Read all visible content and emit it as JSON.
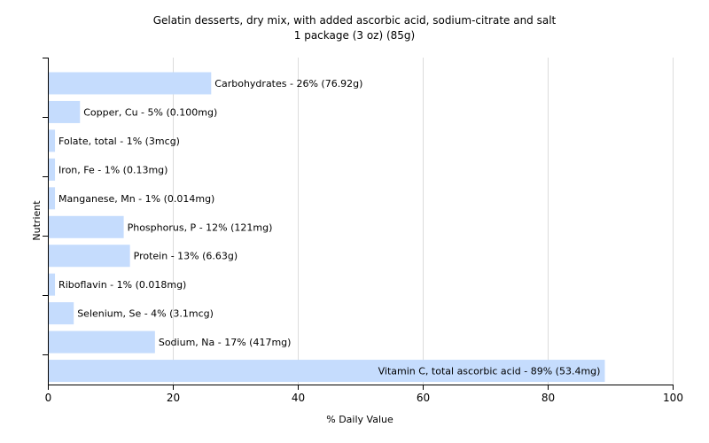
{
  "chart_data": {
    "type": "bar",
    "orientation": "horizontal",
    "title": "Gelatin desserts, dry mix, with added ascorbic acid, sodium-citrate and salt",
    "subtitle": "1 package (3 oz) (85g)",
    "xlabel": "% Daily Value",
    "ylabel": "Nutrient",
    "xlim": [
      0,
      100
    ],
    "xticks": [
      0,
      20,
      40,
      60,
      80,
      100
    ],
    "grid": true,
    "bar_color": "#c5dcfd",
    "categories": [
      "Carbohydrates",
      "Copper, Cu",
      "Folate, total",
      "Iron, Fe",
      "Manganese, Mn",
      "Phosphorus, P",
      "Protein",
      "Riboflavin",
      "Selenium, Se",
      "Sodium, Na",
      "Vitamin C, total ascorbic acid"
    ],
    "values": [
      26,
      5,
      1,
      1,
      1,
      12,
      13,
      1,
      4,
      17,
      89
    ],
    "labels": [
      "Carbohydrates - 26% (76.92g)",
      "Copper, Cu - 5% (0.100mg)",
      "Folate, total - 1% (3mcg)",
      "Iron, Fe - 1% (0.13mg)",
      "Manganese, Mn - 1% (0.014mg)",
      "Phosphorus, P - 12% (121mg)",
      "Protein - 13% (6.63g)",
      "Riboflavin - 1% (0.018mg)",
      "Selenium, Se - 4% (3.1mcg)",
      "Sodium, Na - 17% (417mg)",
      "Vitamin C, total ascorbic acid - 89% (53.4mg)"
    ]
  }
}
